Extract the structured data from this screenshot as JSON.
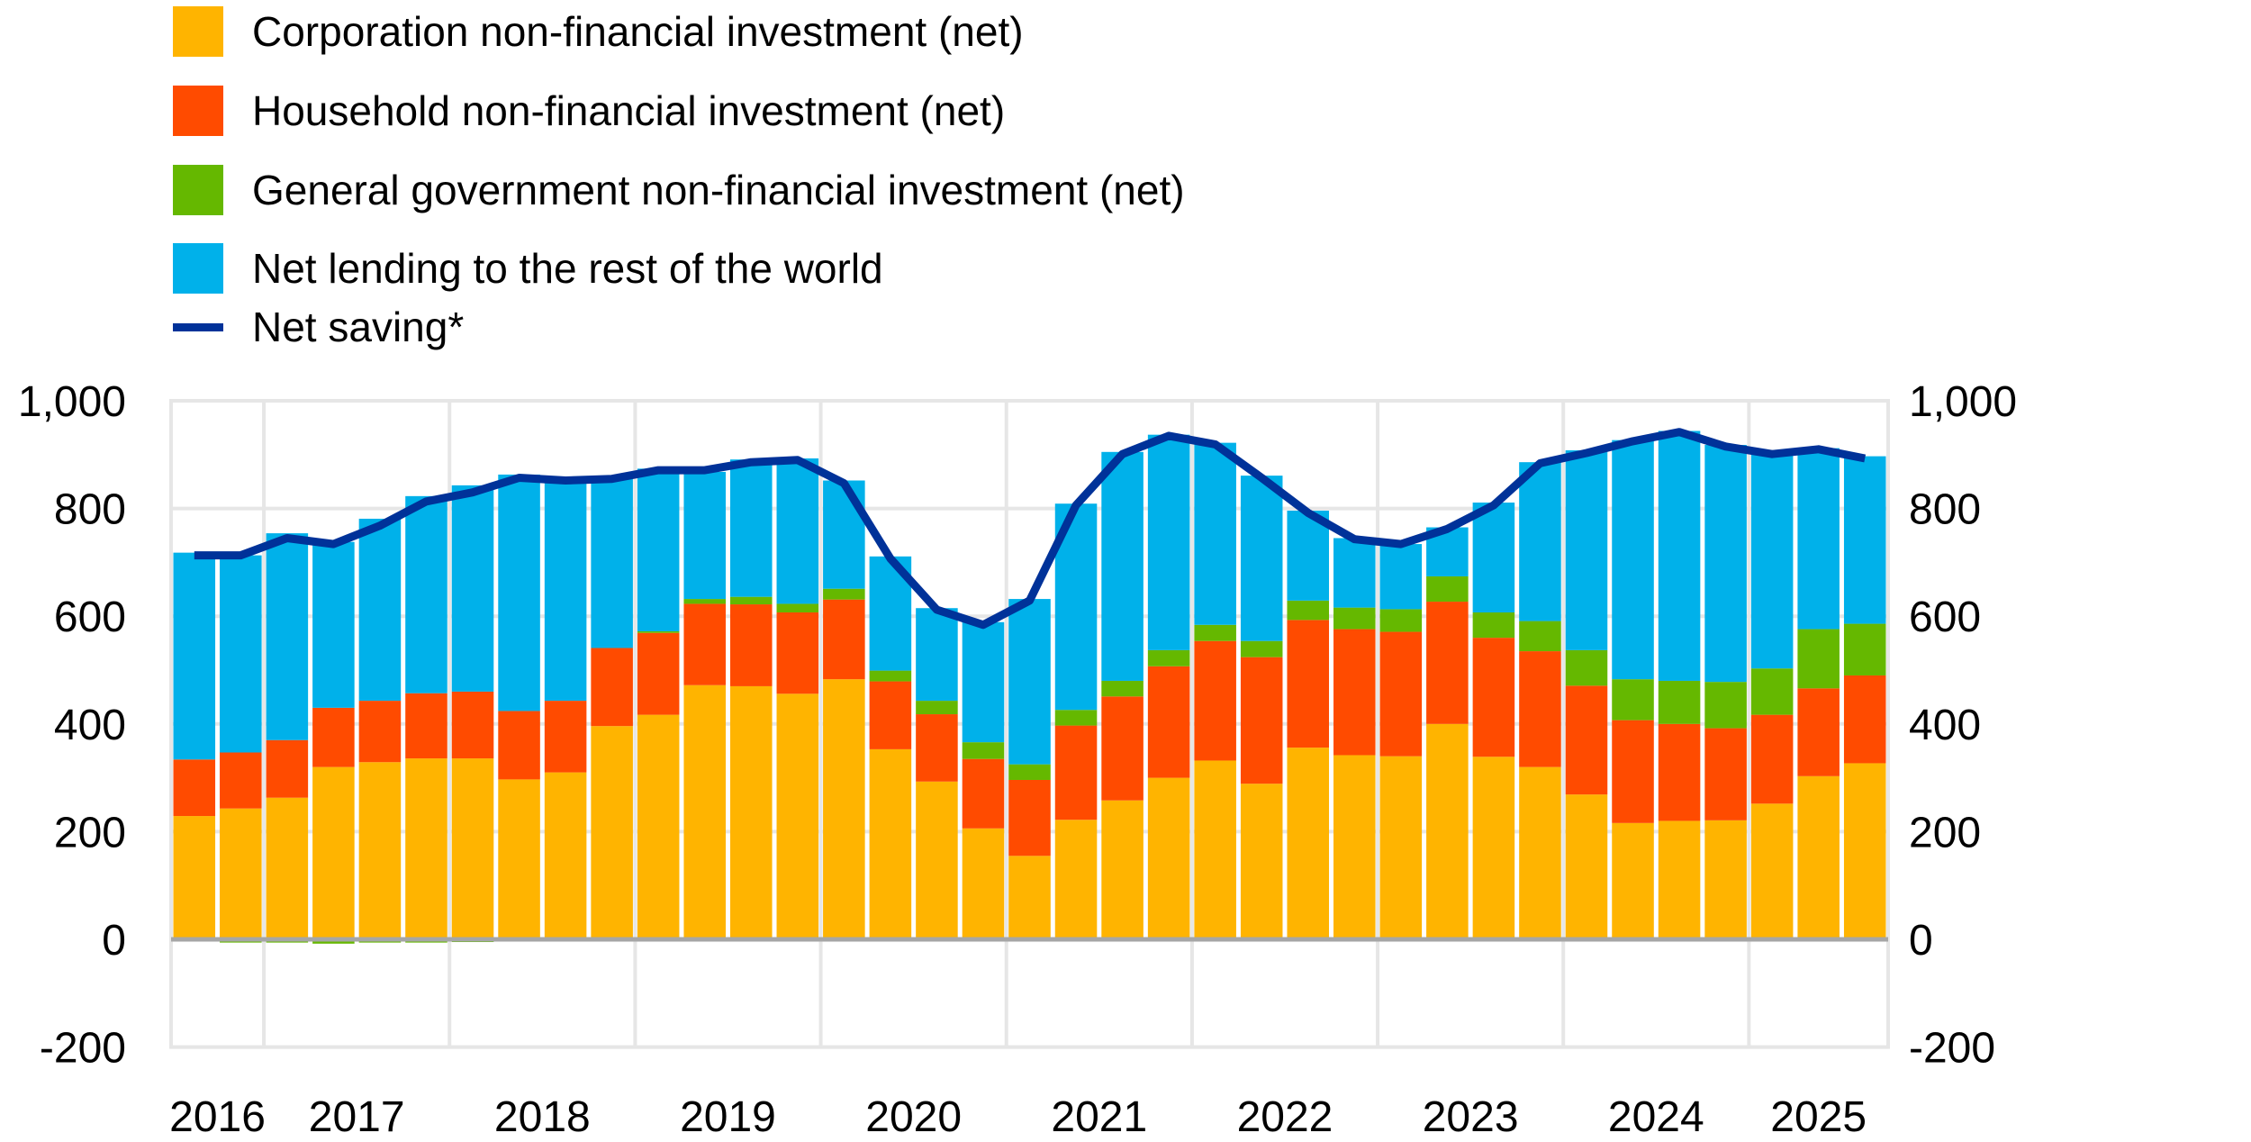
{
  "chart_data": {
    "type": "bar",
    "stacked": true,
    "title": "",
    "xlabel": "",
    "ylabel": "",
    "ylim": [
      -200,
      1000
    ],
    "yticks": [
      -200,
      0,
      200,
      400,
      600,
      800,
      1000
    ],
    "ytick_labels": [
      "-200",
      "0",
      "200",
      "400",
      "600",
      "800",
      "1,000"
    ],
    "y_axes": "left-and-right",
    "grid": true,
    "legend_position": "top-left",
    "x_unit": "quarter",
    "x": [
      "2016Q3",
      "2016Q4",
      "2017Q1",
      "2017Q2",
      "2017Q3",
      "2017Q4",
      "2018Q1",
      "2018Q2",
      "2018Q3",
      "2018Q4",
      "2019Q1",
      "2019Q2",
      "2019Q3",
      "2019Q4",
      "2020Q1",
      "2020Q2",
      "2020Q3",
      "2020Q4",
      "2021Q1",
      "2021Q2",
      "2021Q3",
      "2021Q4",
      "2022Q1",
      "2022Q2",
      "2022Q3",
      "2022Q4",
      "2023Q1",
      "2023Q2",
      "2023Q3",
      "2023Q4",
      "2024Q1",
      "2024Q2",
      "2024Q3",
      "2024Q4",
      "2025Q1",
      "2025Q2",
      "2025Q3"
    ],
    "year_labels": [
      {
        "label": "2016",
        "center_index": 0.5
      },
      {
        "label": "2017",
        "center_index": 3.5
      },
      {
        "label": "2018",
        "center_index": 7.5
      },
      {
        "label": "2019",
        "center_index": 11.5
      },
      {
        "label": "2020",
        "center_index": 15.5
      },
      {
        "label": "2021",
        "center_index": 19.5
      },
      {
        "label": "2022",
        "center_index": 23.5
      },
      {
        "label": "2023",
        "center_index": 27.5
      },
      {
        "label": "2024",
        "center_index": 31.5
      },
      {
        "label": "2025",
        "center_index": 35
      }
    ],
    "year_boundaries": [
      2,
      6,
      10,
      14,
      18,
      22,
      26,
      30,
      34
    ],
    "series": [
      {
        "name": "Corporation non-financial investment (net)",
        "kind": "bar",
        "color": "#FFB400",
        "values": [
          229,
          243,
          263,
          320,
          329,
          336,
          336,
          297,
          310,
          396,
          417,
          472,
          470,
          456,
          483,
          353,
          293,
          206,
          155,
          222,
          258,
          300,
          332,
          289,
          356,
          342,
          340,
          400,
          339,
          320,
          269,
          216,
          220,
          221,
          252,
          303,
          327
        ]
      },
      {
        "name": "Household non-financial investment (net)",
        "kind": "bar",
        "color": "#FF4B00",
        "values": [
          105,
          104,
          107,
          110,
          114,
          121,
          124,
          127,
          133,
          145,
          152,
          151,
          152,
          151,
          148,
          126,
          125,
          129,
          141,
          175,
          193,
          207,
          222,
          235,
          237,
          234,
          231,
          227,
          221,
          215,
          202,
          191,
          180,
          171,
          165,
          163,
          163
        ]
      },
      {
        "name": "General government non-financial investment (net)",
        "kind": "bar",
        "color": "#65B800",
        "values": [
          0,
          -6,
          -6,
          -8,
          -6,
          -6,
          -5,
          -3,
          0,
          0,
          3,
          9,
          14,
          16,
          20,
          20,
          25,
          31,
          29,
          29,
          29,
          30,
          30,
          30,
          36,
          40,
          42,
          47,
          47,
          56,
          66,
          76,
          80,
          86,
          86,
          110,
          96
        ]
      },
      {
        "name": "Net lending to the rest of the world",
        "kind": "bar",
        "color": "#00B1EA",
        "values": [
          384,
          366,
          384,
          308,
          338,
          366,
          383,
          439,
          411,
          314,
          302,
          236,
          255,
          270,
          201,
          212,
          172,
          223,
          307,
          383,
          425,
          400,
          338,
          307,
          167,
          129,
          121,
          91,
          204,
          295,
          371,
          444,
          464,
          440,
          398,
          336,
          311
        ]
      },
      {
        "name": "Net saving*",
        "kind": "line",
        "color": "#003299",
        "values": [
          713,
          713,
          745,
          734,
          768,
          813,
          830,
          857,
          852,
          855,
          871,
          871,
          886,
          890,
          847,
          707,
          612,
          584,
          629,
          806,
          901,
          935,
          919,
          857,
          792,
          743,
          734,
          762,
          806,
          884,
          903,
          925,
          942,
          915,
          901,
          910,
          893
        ]
      }
    ]
  },
  "legend": [
    {
      "label": "Corporation non-financial investment (net)",
      "color": "#FFB400",
      "marker": "square"
    },
    {
      "label": "Household non-financial investment (net)",
      "color": "#FF4B00",
      "marker": "square"
    },
    {
      "label": "General government non-financial investment (net)",
      "color": "#65B800",
      "marker": "square"
    },
    {
      "label": "Net lending to the rest of the world",
      "color": "#00B1EA",
      "marker": "square"
    },
    {
      "label": "Net saving*",
      "color": "#003299",
      "marker": "line"
    }
  ],
  "colors": {
    "grid": "#E6E6E6",
    "zero_line": "#A6A6A6",
    "text": "#000000"
  }
}
